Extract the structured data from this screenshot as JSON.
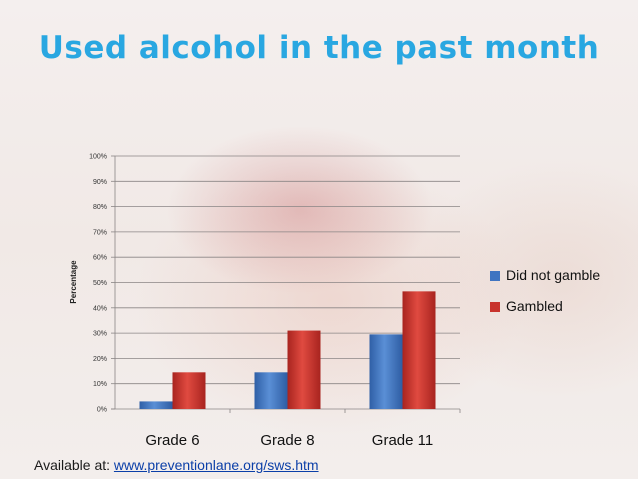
{
  "slide": {
    "footer_prefix": "Available at: ",
    "footer_link": "www.preventionlane.org/sws.htm"
  },
  "chart_data": {
    "type": "bar",
    "title": "Used alcohol in the past month",
    "ylabel": "Percentage",
    "xlabel": "",
    "categories": [
      "Grade 6",
      "Grade 8",
      "Grade 11"
    ],
    "series": [
      {
        "name": "Did not gamble",
        "values": [
          3,
          14.5,
          29.5
        ],
        "color": "#3f74c1"
      },
      {
        "name": "Gambled",
        "values": [
          14.5,
          31,
          46.5
        ],
        "color": "#c8332c"
      }
    ],
    "ylim": [
      0,
      100
    ],
    "ytick_step": 10,
    "ytick_format": "%",
    "grid": true,
    "legend": "right"
  }
}
